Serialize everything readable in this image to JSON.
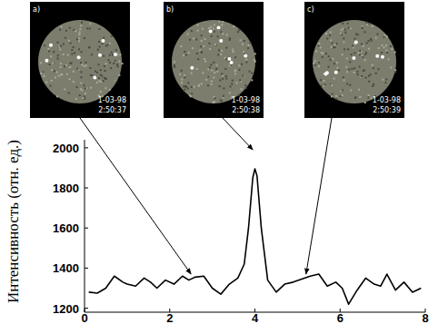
{
  "chart_data": {
    "type": "line",
    "y_label": "Интенсивность (отн. ед.)",
    "x": [
      0.1,
      0.3,
      0.5,
      0.7,
      0.9,
      1.0,
      1.2,
      1.4,
      1.55,
      1.7,
      1.9,
      2.1,
      2.3,
      2.45,
      2.6,
      2.8,
      3.0,
      3.2,
      3.4,
      3.6,
      3.75,
      3.85,
      3.95,
      4.0,
      4.05,
      4.15,
      4.3,
      4.5,
      4.7,
      4.9,
      5.1,
      5.3,
      5.5,
      5.7,
      5.9,
      6.05,
      6.2,
      6.4,
      6.6,
      6.8,
      6.95,
      7.1,
      7.3,
      7.5,
      7.7,
      7.9
    ],
    "values": [
      1280,
      1275,
      1300,
      1360,
      1330,
      1320,
      1310,
      1350,
      1330,
      1300,
      1340,
      1320,
      1360,
      1340,
      1355,
      1360,
      1300,
      1270,
      1320,
      1350,
      1420,
      1600,
      1850,
      1895,
      1860,
      1600,
      1340,
      1280,
      1320,
      1330,
      1345,
      1360,
      1370,
      1310,
      1330,
      1300,
      1220,
      1290,
      1350,
      1320,
      1310,
      1370,
      1290,
      1330,
      1280,
      1300
    ],
    "color": "#000000",
    "xlim": [
      0,
      8
    ],
    "xticks": [
      0,
      2,
      4,
      6,
      8
    ],
    "ylim": [
      1180,
      2040
    ],
    "yticks": [
      1200,
      1400,
      1600,
      1800,
      2000
    ],
    "grid": false,
    "annotations": [
      {
        "label": "a)",
        "date": "1-03-98",
        "time": "2:50:37",
        "x": 2.5,
        "y": 1370
      },
      {
        "label": "b)",
        "date": "1-03-98",
        "time": "2:50:38",
        "x": 3.95,
        "y": 1990
      },
      {
        "label": "c)",
        "date": "1-03-98",
        "time": "2:50:39",
        "x": 5.2,
        "y": 1370
      }
    ]
  }
}
